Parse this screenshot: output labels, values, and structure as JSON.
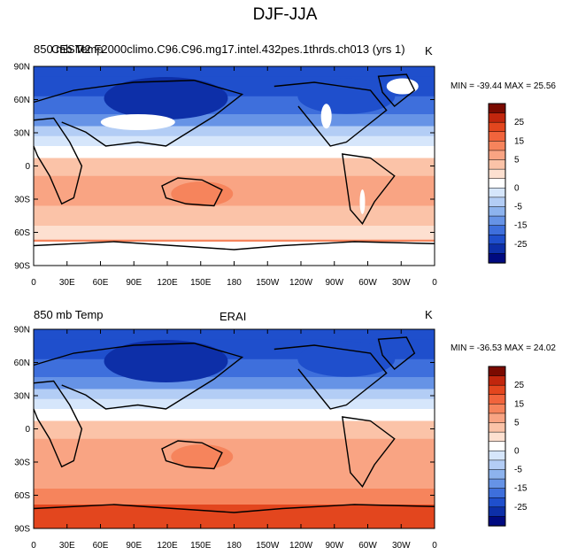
{
  "figure": {
    "title": "DJF-JJA"
  },
  "panels": [
    {
      "left_label": "850 mb Temp",
      "center_label": "CESM2 F2000climo.C96.C96.mg17.intel.432pes.1thrds.ch013 (yrs 1)",
      "units": "K",
      "stats": "MIN = -39.44 MAX =  25.56"
    },
    {
      "left_label": "850 mb Temp",
      "center_label": "ERAI",
      "units": "K",
      "stats": "MIN = -36.53 MAX = 24.02"
    }
  ],
  "lat_ticks": [
    "90N",
    "60N",
    "30N",
    "0",
    "30S",
    "60S",
    "90S"
  ],
  "lon_ticks": [
    "0",
    "30E",
    "60E",
    "90E",
    "120E",
    "150E",
    "180",
    "150W",
    "120W",
    "90W",
    "60W",
    "30W",
    "0"
  ],
  "colorbar": {
    "labels": [
      "25",
      "15",
      "5",
      "0",
      "-5",
      "-15",
      "-25"
    ],
    "colors": [
      "#7a0a00",
      "#c1260d",
      "#e3461e",
      "#f1643c",
      "#f6845c",
      "#f9a483",
      "#fbc3a8",
      "#fde0d0",
      "#ffffff",
      "#d6e6fb",
      "#b3cdf5",
      "#8db3ee",
      "#6693e6",
      "#3e6fdc",
      "#1f4fcc",
      "#0d2fa8",
      "#000a80"
    ]
  }
}
